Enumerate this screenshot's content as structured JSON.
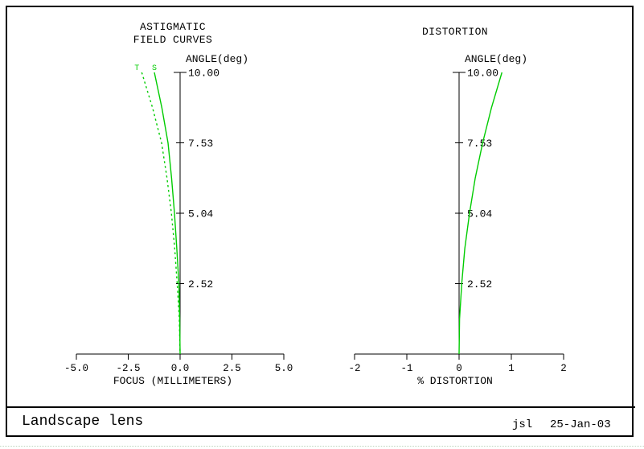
{
  "window": {
    "footer": {
      "title": "Landscape lens",
      "author": "jsl",
      "date": "25-Jan-03"
    }
  },
  "colors": {
    "curve": "#00cc00",
    "axis": "#000000",
    "text": "#000000"
  },
  "chart_data": [
    {
      "type": "line",
      "title_lines": [
        "ASTIGMATIC",
        "FIELD CURVES"
      ],
      "ylabel": "ANGLE(deg)",
      "xlabel": "FOCUS (MILLIMETERS)",
      "xlim": [
        -5.0,
        5.0
      ],
      "ylim_deg": [
        0,
        10
      ],
      "y_scale": "tangent-of-angle",
      "grid": false,
      "x_ticks": {
        "values": [
          -5.0,
          -2.5,
          0.0,
          2.5,
          5.0
        ],
        "labels": [
          "-5.0",
          "-2.5",
          "0.0",
          "2.5",
          "5.0"
        ]
      },
      "y_ticks": {
        "fractions": [
          0.25,
          0.5,
          0.75,
          1.0
        ],
        "labels": [
          "2.52",
          "5.04",
          "7.53",
          "10.00"
        ]
      },
      "series": [
        {
          "name": "sagittal",
          "label": "S",
          "style": "solid",
          "points": [
            [
              10.0,
              -1.24
            ],
            [
              8.77,
              -0.88
            ],
            [
              7.53,
              -0.58
            ],
            [
              6.29,
              -0.41
            ],
            [
              5.04,
              -0.27
            ],
            [
              3.78,
              -0.16
            ],
            [
              2.52,
              -0.06
            ],
            [
              1.26,
              -0.02
            ],
            [
              0.0,
              0.0
            ]
          ]
        },
        {
          "name": "tangential",
          "label": "T",
          "style": "dashed",
          "points": [
            [
              10.0,
              -1.85
            ],
            [
              8.77,
              -1.33
            ],
            [
              7.53,
              -0.89
            ],
            [
              6.29,
              -0.63
            ],
            [
              5.04,
              -0.42
            ],
            [
              3.78,
              -0.26
            ],
            [
              2.52,
              -0.14
            ],
            [
              1.26,
              -0.04
            ],
            [
              0.0,
              0.0
            ]
          ]
        }
      ]
    },
    {
      "type": "line",
      "title_lines": [
        "DISTORTION"
      ],
      "ylabel": "ANGLE(deg)",
      "xlabel": "% DISTORTION",
      "xlim": [
        -2,
        2
      ],
      "ylim_deg": [
        0,
        10
      ],
      "y_scale": "tangent-of-angle",
      "grid": false,
      "x_ticks": {
        "values": [
          -2,
          -1,
          0,
          1,
          2
        ],
        "labels": [
          "-2",
          "-1",
          "0",
          "1",
          "2"
        ]
      },
      "y_ticks": {
        "fractions": [
          0.25,
          0.5,
          0.75,
          1.0
        ],
        "labels": [
          "2.52",
          "5.04",
          "7.53",
          "10.00"
        ]
      },
      "series": [
        {
          "name": "distortion",
          "label": "",
          "style": "solid",
          "points": [
            [
              10.0,
              0.82
            ],
            [
              8.77,
              0.62
            ],
            [
              7.53,
              0.45
            ],
            [
              6.29,
              0.31
            ],
            [
              5.04,
              0.2
            ],
            [
              3.78,
              0.11
            ],
            [
              2.52,
              0.05
            ],
            [
              1.26,
              0.01
            ],
            [
              0.0,
              0.0
            ]
          ]
        }
      ]
    }
  ]
}
